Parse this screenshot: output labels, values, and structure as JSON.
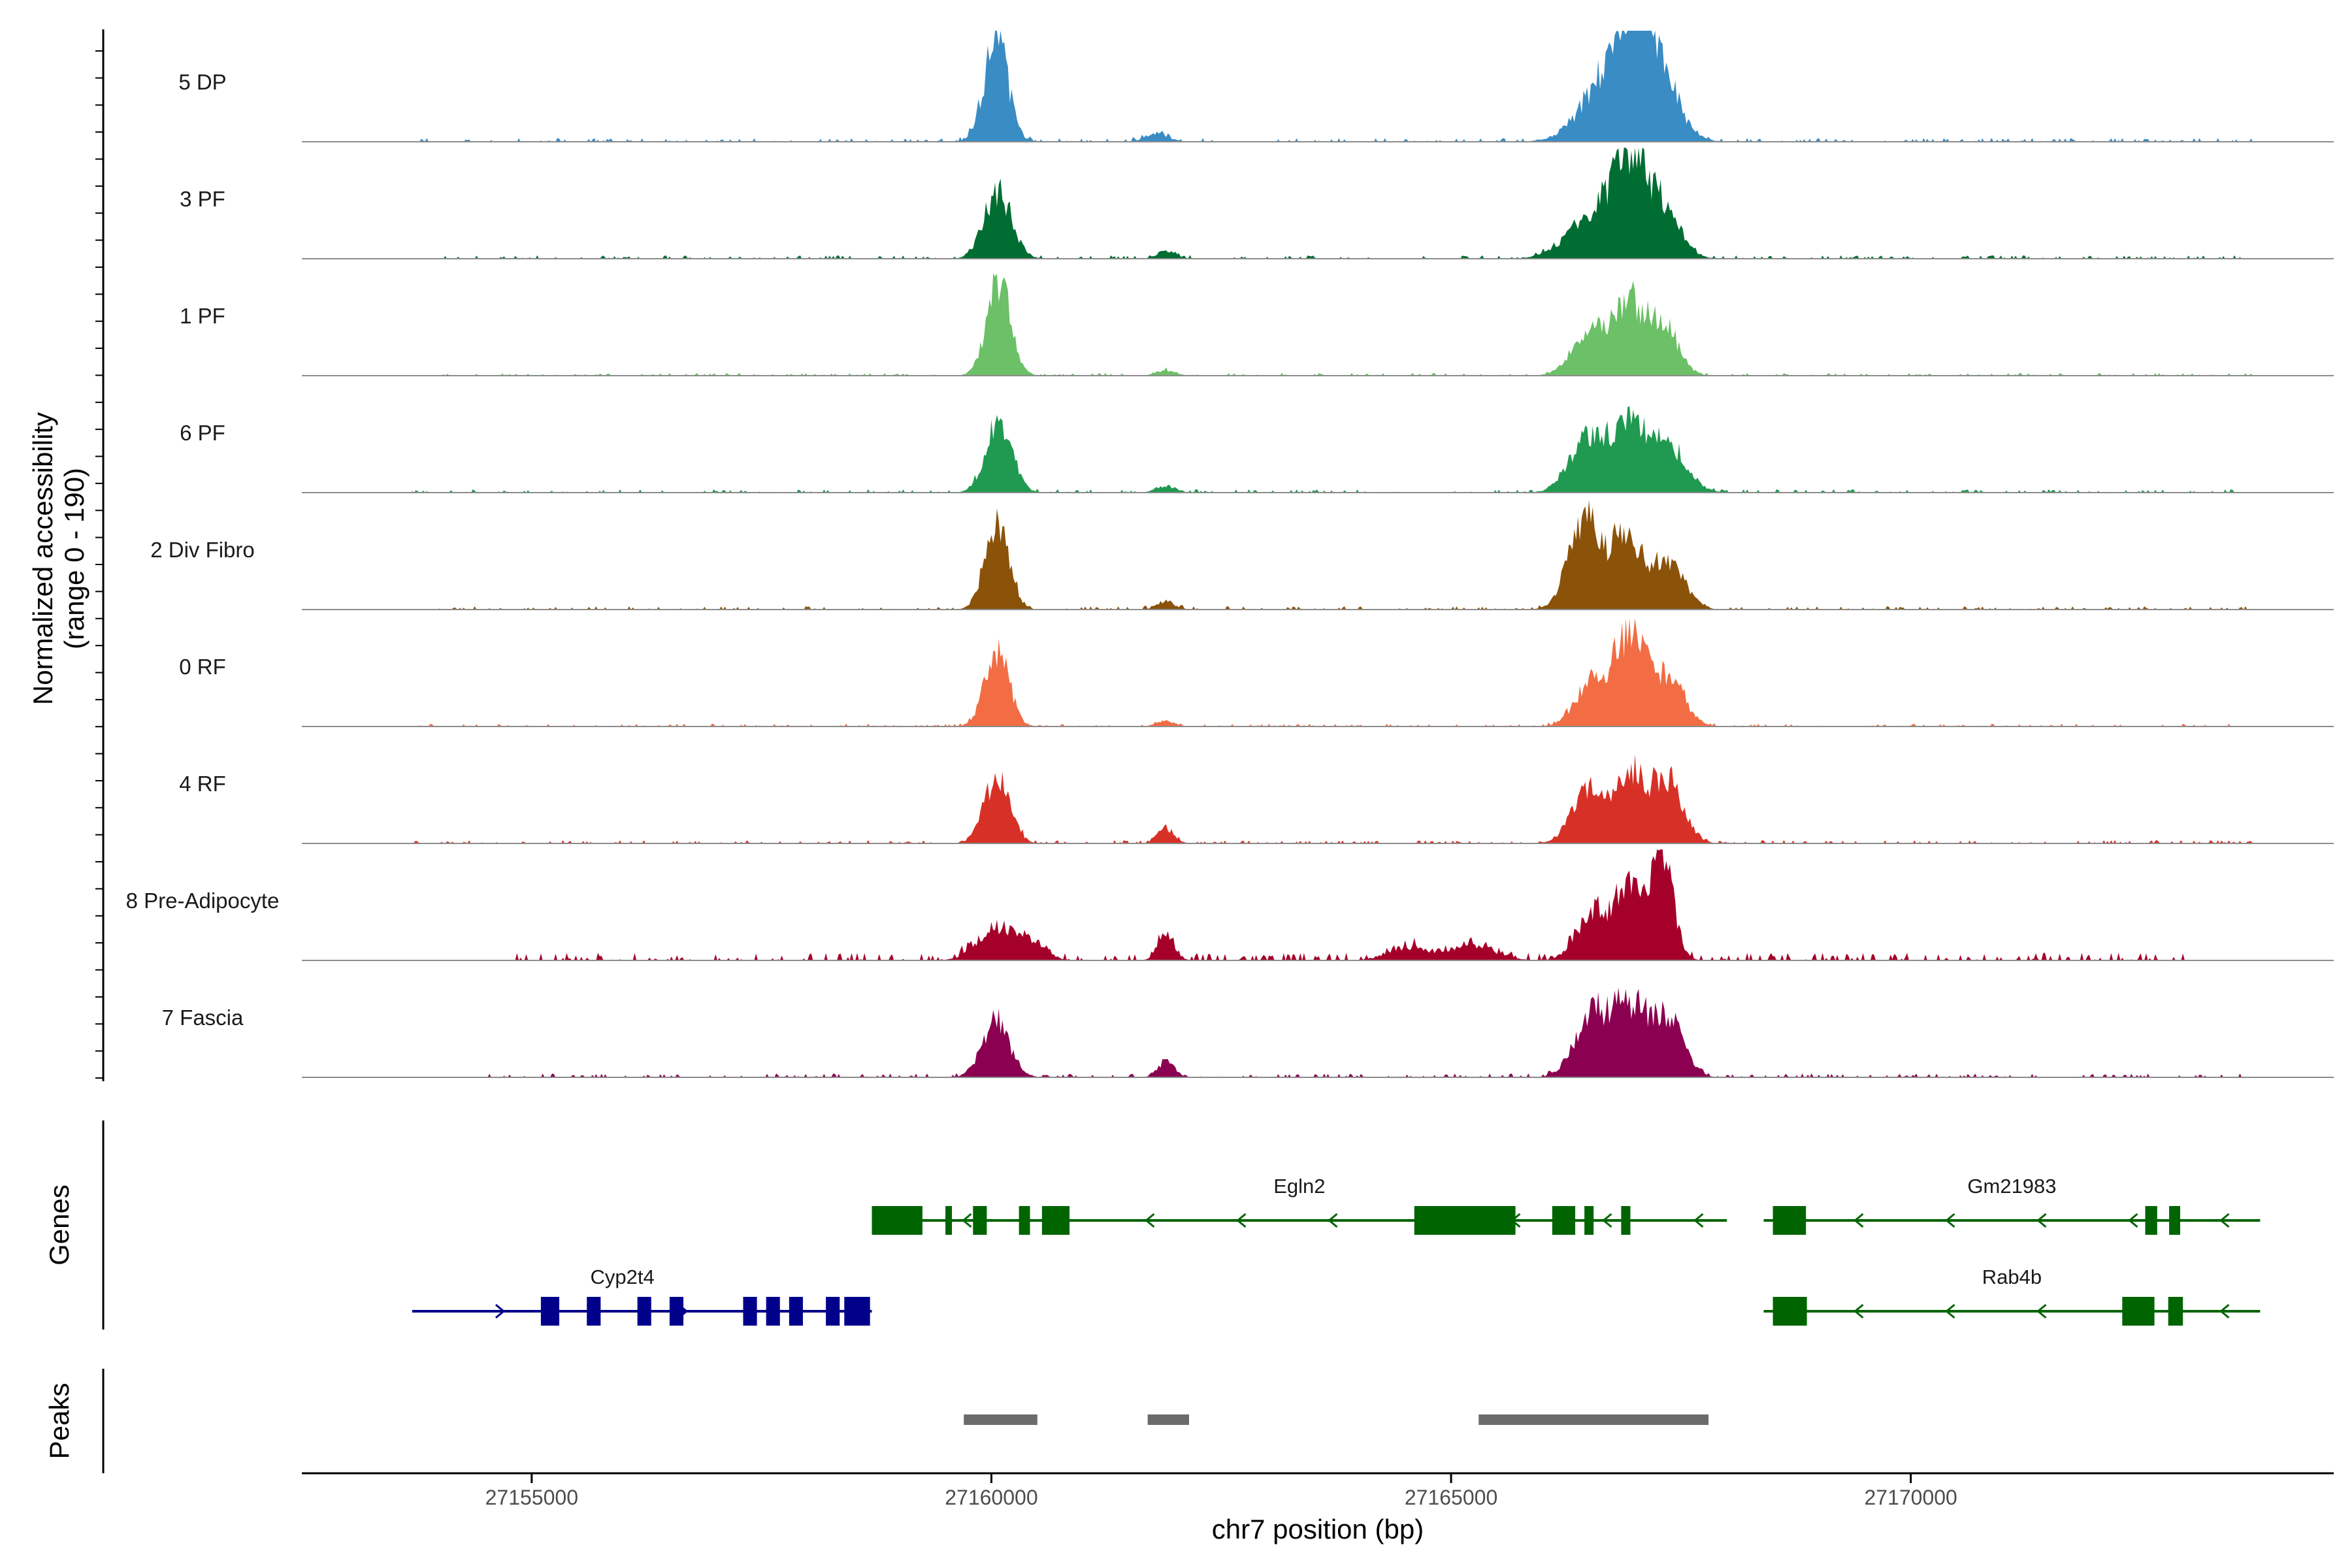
{
  "chart_data": {
    "type": "area",
    "title": "",
    "xlabel": "chr7 position (bp)",
    "ylabel": "Normalized accessibility\n(range 0 - 190)",
    "ylim": [
      0,
      190
    ],
    "xlim": [
      27152500,
      27174600
    ],
    "x_ticks": [
      27155000,
      27160000,
      27165000,
      27170000
    ],
    "x_tick_labels": [
      "27155000",
      "27160000",
      "27165000",
      "27170000"
    ],
    "tracks": [
      {
        "name": "5 DP",
        "color": "#3a8cc4",
        "peaks": [
          [
            27160050,
            0.95,
            130
          ],
          [
            27166700,
            0.55,
            280
          ],
          [
            27167000,
            0.72,
            200
          ],
          [
            27167250,
            0.55,
            220
          ],
          [
            27161800,
            0.08,
            120
          ]
        ],
        "noise": 0.035,
        "range": [
          27153700,
          27173700
        ]
      },
      {
        "name": "3 PF",
        "color": "#006d32",
        "peaks": [
          [
            27160070,
            0.62,
            150
          ],
          [
            27166500,
            0.35,
            260
          ],
          [
            27166900,
            0.78,
            170
          ],
          [
            27167250,
            0.55,
            200
          ],
          [
            27161900,
            0.07,
            100
          ]
        ],
        "noise": 0.03,
        "range": [
          27153700,
          27173700
        ]
      },
      {
        "name": "1 PF",
        "color": "#6cc067",
        "peaks": [
          [
            27160080,
            0.85,
            130
          ],
          [
            27166550,
            0.48,
            200
          ],
          [
            27166950,
            0.62,
            140
          ],
          [
            27167300,
            0.5,
            160
          ],
          [
            27161900,
            0.05,
            100
          ]
        ],
        "noise": 0.025,
        "range": [
          27153700,
          27173700
        ]
      },
      {
        "name": "6 PF",
        "color": "#1f9a50",
        "peaks": [
          [
            27160080,
            0.68,
            140
          ],
          [
            27166500,
            0.5,
            200
          ],
          [
            27166950,
            0.55,
            180
          ],
          [
            27167350,
            0.45,
            200
          ],
          [
            27161900,
            0.06,
            100
          ]
        ],
        "noise": 0.03,
        "range": [
          27153700,
          27173700
        ]
      },
      {
        "name": "2 Div Fibro",
        "color": "#8b5209",
        "peaks": [
          [
            27160060,
            0.85,
            130
          ],
          [
            27166450,
            0.82,
            170
          ],
          [
            27166900,
            0.72,
            160
          ],
          [
            27167350,
            0.45,
            180
          ],
          [
            27161900,
            0.07,
            100
          ]
        ],
        "noise": 0.03,
        "range": [
          27153700,
          27173700
        ]
      },
      {
        "name": "0 RF",
        "color": "#f26d44",
        "peaks": [
          [
            27160060,
            0.7,
            130
          ],
          [
            27166550,
            0.45,
            180
          ],
          [
            27166950,
            0.8,
            160
          ],
          [
            27167350,
            0.45,
            180
          ],
          [
            27161900,
            0.05,
            100
          ]
        ],
        "noise": 0.025,
        "range": [
          27153700,
          27173700
        ]
      },
      {
        "name": "4 RF",
        "color": "#d73127",
        "peaks": [
          [
            27160060,
            0.6,
            140
          ],
          [
            27166500,
            0.5,
            180
          ],
          [
            27166950,
            0.62,
            150
          ],
          [
            27167350,
            0.6,
            170
          ],
          [
            27161900,
            0.14,
            90
          ]
        ],
        "noise": 0.03,
        "range": [
          27153700,
          27173700
        ]
      },
      {
        "name": "8 Pre-Adipocyte",
        "color": "#a5002a",
        "peaks": [
          [
            27160050,
            0.3,
            200
          ],
          [
            27160450,
            0.15,
            150
          ],
          [
            27166550,
            0.45,
            180
          ],
          [
            27166950,
            0.62,
            150
          ],
          [
            27167300,
            0.9,
            120
          ],
          [
            27161900,
            0.25,
            90
          ],
          [
            27165200,
            0.15,
            250
          ],
          [
            27164500,
            0.12,
            200
          ]
        ],
        "noise": 0.07,
        "range": [
          27154800,
          27173000
        ]
      },
      {
        "name": "7 Fascia",
        "color": "#8b0050",
        "peaks": [
          [
            27160050,
            0.52,
            150
          ],
          [
            27166550,
            0.6,
            190
          ],
          [
            27166950,
            0.62,
            160
          ],
          [
            27167350,
            0.55,
            170
          ],
          [
            27161900,
            0.14,
            90
          ]
        ],
        "noise": 0.035,
        "range": [
          27154500,
          27173600
        ]
      }
    ],
    "genes": [
      {
        "name": "Egln2",
        "strand": "-",
        "start": 27158700,
        "end": 27168000,
        "color": "#006400",
        "row": 1,
        "exons": [
          [
            27158700,
            27159250
          ],
          [
            27159500,
            27159570
          ],
          [
            27159800,
            27159950
          ],
          [
            27160300,
            27160420
          ],
          [
            27160550,
            27160850
          ],
          [
            27164600,
            27165700
          ],
          [
            27166100,
            27166350
          ],
          [
            27166450,
            27166550
          ],
          [
            27166850,
            27166950
          ]
        ]
      },
      {
        "name": "Gm21983",
        "strand": "-",
        "start": 27168400,
        "end": 27173800,
        "color": "#006400",
        "row": 1,
        "exons": [
          [
            27168500,
            27168860
          ],
          [
            27172550,
            27172680
          ],
          [
            27172810,
            27172930
          ]
        ]
      },
      {
        "name": "Cyp2t4",
        "strand": "+",
        "start": 27153700,
        "end": 27158700,
        "color": "#00008b",
        "row": 2,
        "exons": [
          [
            27155100,
            27155300
          ],
          [
            27155600,
            27155750
          ],
          [
            27156150,
            27156300
          ],
          [
            27156500,
            27156650
          ],
          [
            27157300,
            27157450
          ],
          [
            27157550,
            27157700
          ],
          [
            27157800,
            27157950
          ],
          [
            27158200,
            27158350
          ],
          [
            27158400,
            27158680
          ]
        ]
      },
      {
        "name": "Rab4b",
        "strand": "-",
        "start": 27168400,
        "end": 27173800,
        "color": "#006400",
        "row": 2,
        "exons": [
          [
            27168500,
            27168870
          ],
          [
            27172300,
            27172650
          ],
          [
            27172800,
            27172960
          ]
        ]
      }
    ],
    "peaks": [
      {
        "start": 27159700,
        "end": 27160500
      },
      {
        "start": 27161700,
        "end": 27162150
      },
      {
        "start": 27165300,
        "end": 27167800
      }
    ]
  },
  "panels": {
    "genes_title": "Genes",
    "peaks_title": "Peaks"
  }
}
